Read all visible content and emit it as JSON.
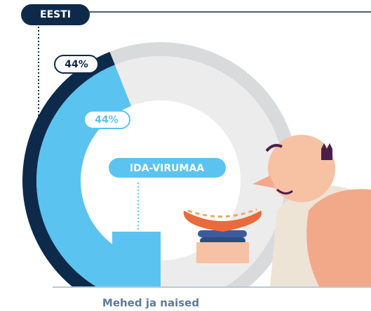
{
  "chart_data": {
    "type": "donut",
    "series": [
      {
        "name": "EESTI",
        "color": "#0e2a4b",
        "values": [
          44
        ],
        "value_labels": [
          "44%"
        ]
      },
      {
        "name": "IDA-VIRUMAA",
        "color": "#5bc3f0",
        "values": [
          44
        ],
        "value_labels": [
          "44%"
        ]
      }
    ],
    "caption": "Mehed ja naised"
  }
}
